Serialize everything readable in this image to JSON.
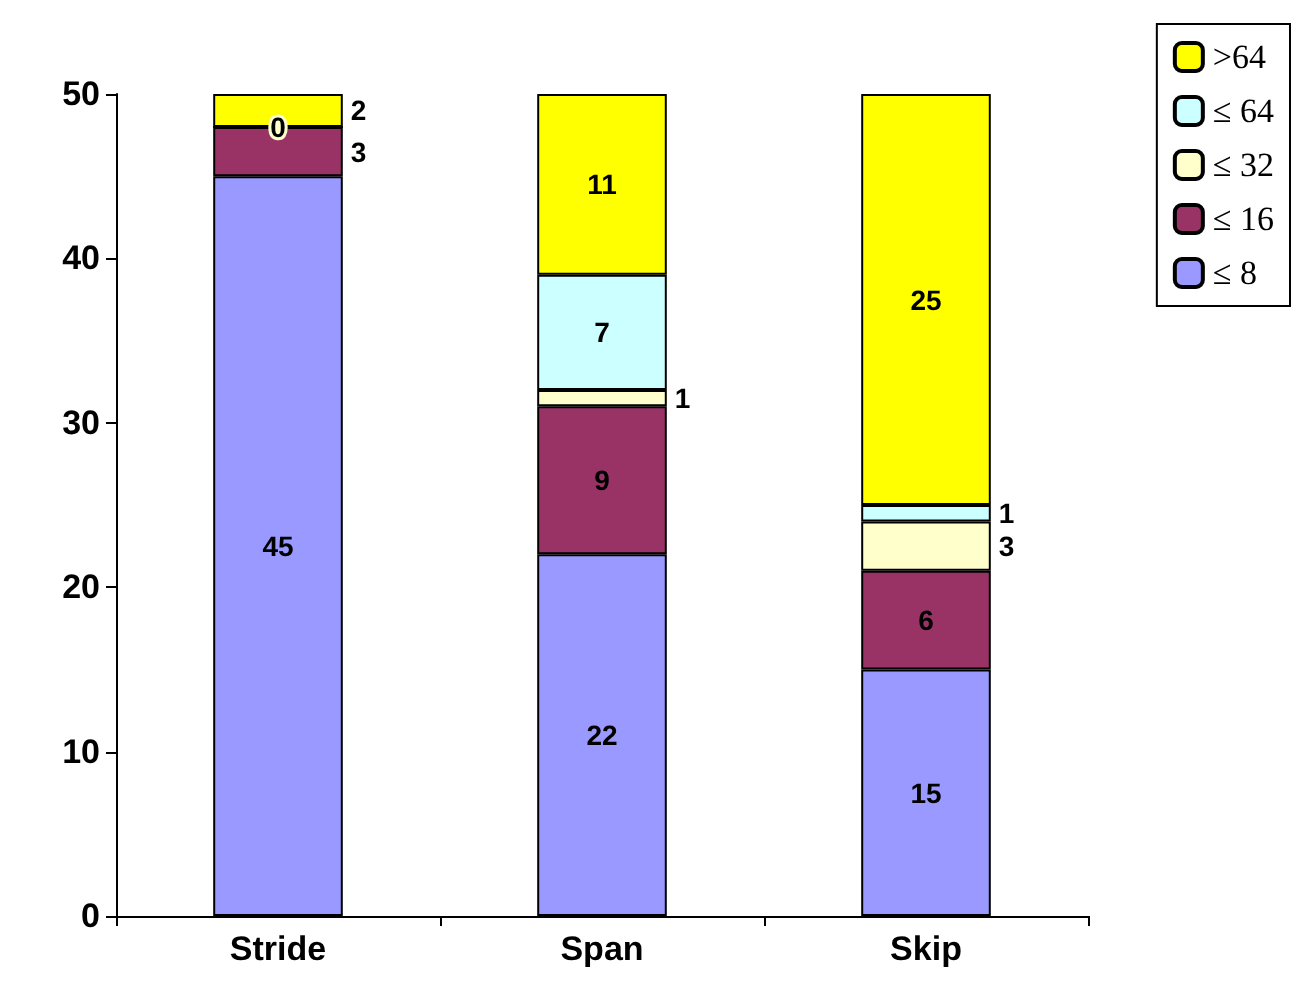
{
  "chart_data": {
    "type": "bar",
    "stacked": true,
    "categories": [
      "Stride",
      "Span",
      "Skip"
    ],
    "series": [
      {
        "name": "≤ 8",
        "color": "#9999ff",
        "values": [
          45,
          22,
          15
        ],
        "value_labels": [
          "45",
          "22",
          "15"
        ]
      },
      {
        "name": "≤ 16",
        "color": "#993366",
        "values": [
          3,
          9,
          6
        ],
        "value_labels": [
          "3",
          "9",
          "6"
        ]
      },
      {
        "name": "≤ 32",
        "color": "#ffffcc",
        "values": [
          0,
          1,
          3
        ],
        "value_labels": [
          "0",
          "1",
          "3"
        ]
      },
      {
        "name": "≤ 64",
        "color": "#ccffff",
        "values": [
          0,
          7,
          1
        ],
        "value_labels": [
          null,
          "7",
          "1"
        ]
      },
      {
        "name": ">64",
        "color": "#ffff00",
        "values": [
          2,
          11,
          25
        ],
        "value_labels": [
          "2",
          "11",
          "25"
        ]
      }
    ],
    "ylim": [
      0,
      50
    ],
    "yticks": [
      0,
      10,
      20,
      30,
      40,
      50
    ],
    "grid": false,
    "legend": "top right"
  }
}
